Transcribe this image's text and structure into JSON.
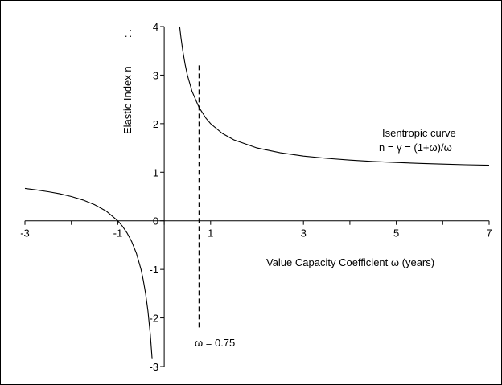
{
  "chart_data": {
    "type": "line",
    "xlabel": "Value Capacity Coefficient ω (years)",
    "ylabel": "Elastic Index  n",
    "ylabel_suffix": ": .",
    "xlim": [
      -3,
      7
    ],
    "ylim": [
      -3,
      4
    ],
    "x_ticks": [
      -3,
      -1,
      1,
      3,
      5,
      7
    ],
    "y_ticks": [
      -3,
      -2,
      -1,
      0,
      1,
      2,
      3,
      4
    ],
    "grid": false,
    "series": [
      {
        "formula": "n = (1+ω)/ω",
        "color": "#000000",
        "segments": [
          {
            "x": [
              -3,
              -2.75,
              -2.5,
              -2.25,
              -2.0,
              -1.75,
              -1.5,
              -1.25,
              -1.0,
              -0.9,
              -0.8,
              -0.7,
              -0.6,
              -0.5,
              -0.45,
              -0.4,
              -0.35,
              -0.3,
              -0.26
            ],
            "y": [
              0.667,
              0.636,
              0.6,
              0.556,
              0.5,
              0.429,
              0.333,
              0.2,
              0.0,
              -0.111,
              -0.25,
              -0.429,
              -0.667,
              -1.0,
              -1.222,
              -1.5,
              -1.857,
              -2.333,
              -2.846
            ]
          },
          {
            "x": [
              0.333,
              0.36,
              0.4,
              0.45,
              0.5,
              0.6,
              0.75,
              0.9,
              1.0,
              1.25,
              1.5,
              2.0,
              2.5,
              3.0,
              3.5,
              4.0,
              4.5,
              5.0,
              5.5,
              6.0,
              6.5,
              7.0
            ],
            "y": [
              4.0,
              3.778,
              3.5,
              3.222,
              3.0,
              2.667,
              2.333,
              2.111,
              2.0,
              1.8,
              1.667,
              1.5,
              1.4,
              1.333,
              1.286,
              1.25,
              1.222,
              1.2,
              1.182,
              1.167,
              1.154,
              1.143
            ]
          }
        ]
      }
    ],
    "vline": {
      "x": 0.75,
      "y_range": [
        -2.2,
        3.2
      ],
      "style": "dashed"
    },
    "annotations": {
      "curve_title": "Isentropic curve",
      "curve_formula": "n = γ = (1+ω)/ω",
      "vline_label": "ω = 0.75"
    }
  }
}
